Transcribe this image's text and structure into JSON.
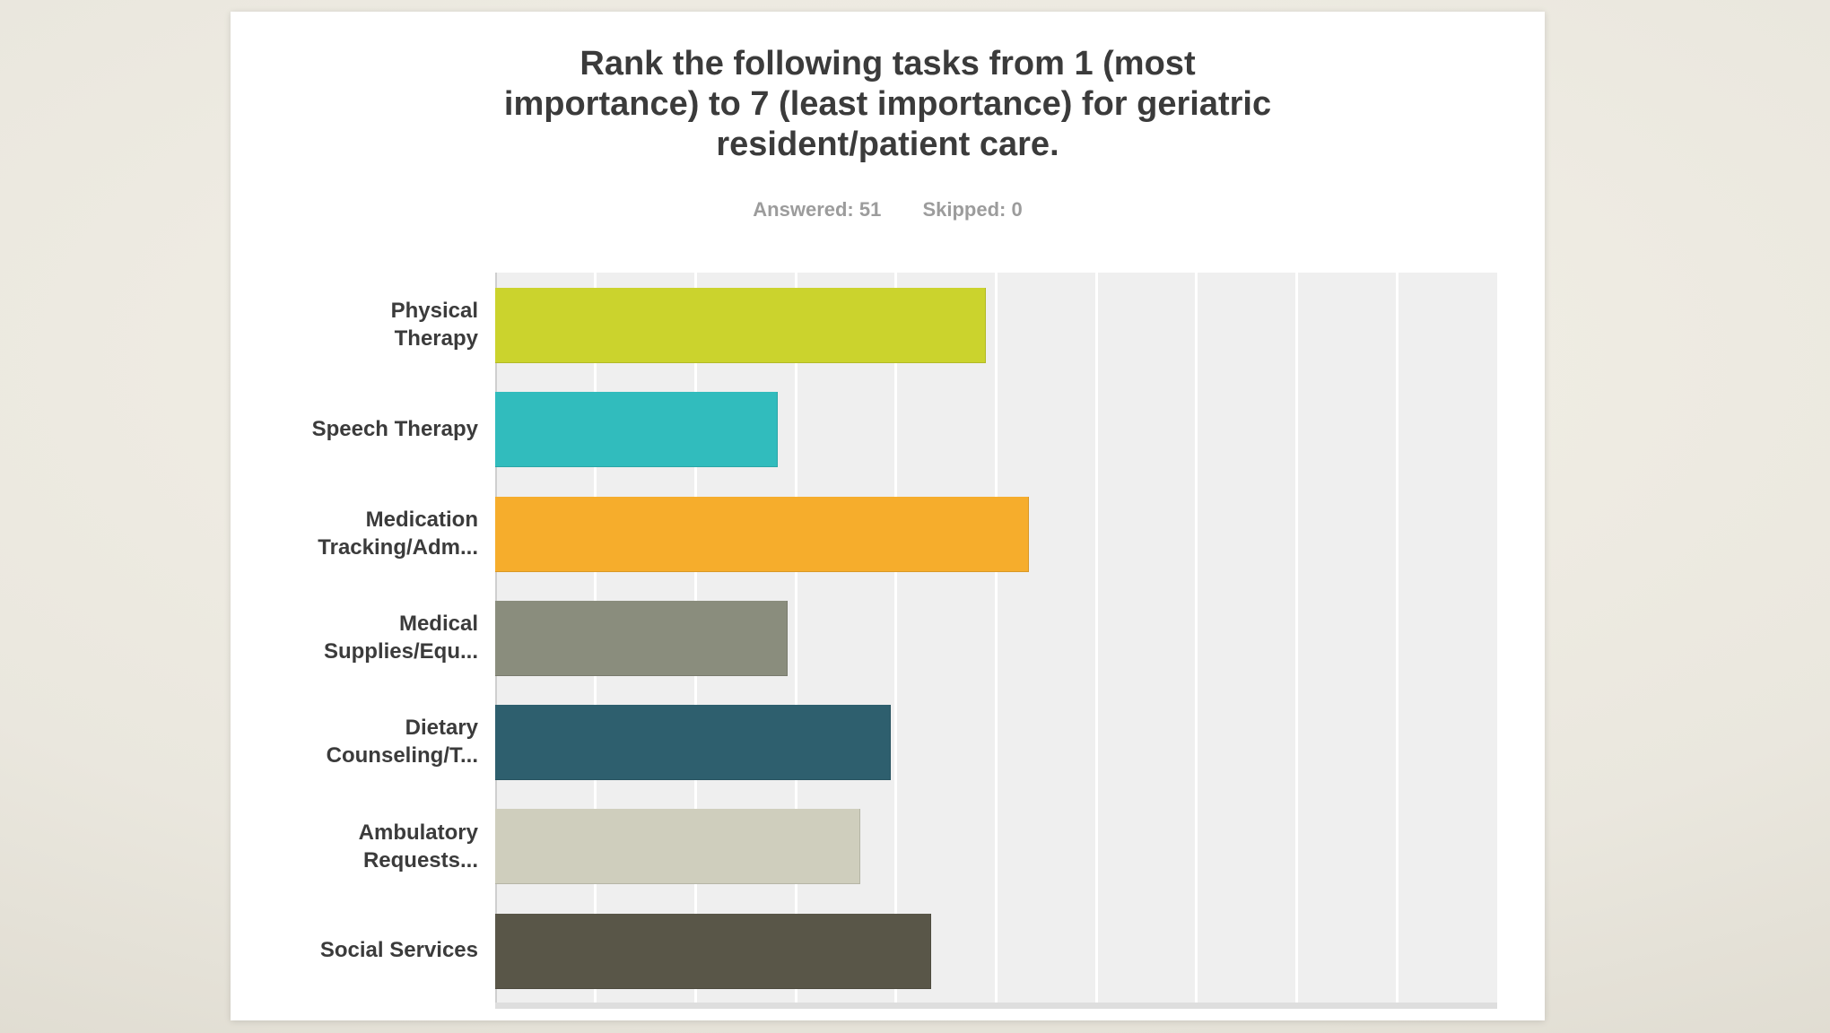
{
  "header": {
    "title": "Rank the following tasks from 1 (most importance) to 7 (least importance) for geriatric resident/patient care.",
    "answered": "Answered: 51",
    "skipped": "Skipped: 0"
  },
  "chart_data": {
    "type": "bar",
    "orientation": "horizontal",
    "title": "Rank the following tasks from 1 (most importance) to 7 (least importance) for geriatric resident/patient care.",
    "answered_count": 51,
    "skipped_count": 0,
    "categories": [
      "Physical Therapy",
      "Speech Therapy",
      "Medication Tracking/Adm...",
      "Medical Supplies/Equ...",
      "Dietary Counseling/T...",
      "Ambulatory Requests...",
      "Social Services"
    ],
    "category_display": [
      "Physical\nTherapy",
      "Speech Therapy",
      "Medication\nTracking/Adm...",
      "Medical\nSupplies/Equ...",
      "Dietary\nCounseling/T...",
      "Ambulatory\nRequests...",
      "Social Services"
    ],
    "values_pct_of_axis": [
      49.0,
      28.2,
      53.3,
      29.2,
      39.5,
      36.4,
      43.5
    ],
    "bar_colors": [
      "#cbd32d",
      "#31bcbd",
      "#f6ad2c",
      "#8a8d7d",
      "#2e5f6e",
      "#cfcebd",
      "#595648"
    ],
    "xlim_pct": [
      0,
      100
    ],
    "x_tick_labels_visible": false,
    "y_tick_labels_visible": true,
    "gridlines": {
      "visible": true,
      "divisions": 10,
      "color": "#ffffff"
    },
    "plot_background": "#efefef",
    "legend_position": "none"
  },
  "colors": {
    "page_background": "#eae7de",
    "card_background": "#ffffff",
    "title_text": "#3b3b3b",
    "meta_text": "#9c9c9c",
    "label_text": "#3b3b3b",
    "gridline": "#ffffff",
    "axis_baseline": "#dedede",
    "axis_edge_line": "#cfcfcf"
  }
}
